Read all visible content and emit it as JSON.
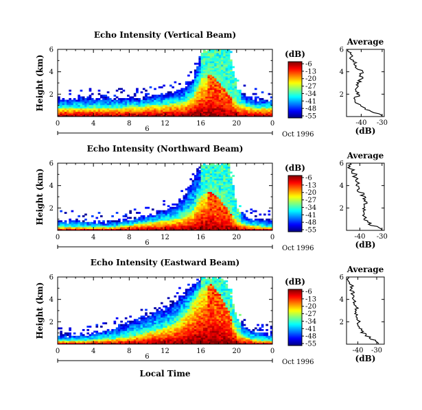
{
  "chart_data": [
    {
      "type": "heatmap",
      "title": "Echo Intensity (Vertical Beam)",
      "ylabel": "Height (km)",
      "date_label": "Oct 1996",
      "x_ticks": [
        "0",
        "4",
        "8",
        "12",
        "16",
        "20",
        "0"
      ],
      "day_label": "6",
      "y_ticks": [
        "2",
        "4",
        "6"
      ],
      "xlim": [
        0,
        24
      ],
      "ylim": [
        0,
        6
      ],
      "colorbar": {
        "unit": "(dB)",
        "ticks": [
          "-6",
          "-13",
          "-20",
          "-27",
          "-34",
          "-41",
          "-48",
          "-55"
        ]
      },
      "layer_top_km": [
        1.6,
        1.6,
        1.6,
        1.7,
        1.6,
        1.6,
        1.7,
        1.6,
        1.7,
        1.6,
        1.8,
        1.9,
        2.0,
        2.2,
        2.5,
        3.5,
        5.9,
        6.0,
        6.0,
        6.0,
        2.5,
        1.8,
        1.6,
        1.5
      ],
      "strong_layer_top_km": [
        0.8,
        0.8,
        0.8,
        0.8,
        0.8,
        0.8,
        0.8,
        0.8,
        0.9,
        0.9,
        1.0,
        1.0,
        1.1,
        1.2,
        1.3,
        1.8,
        3.4,
        3.8,
        3.0,
        2.0,
        1.2,
        0.9,
        0.8,
        0.8
      ],
      "average": {
        "title": "Average",
        "xlabel": "(dB)",
        "x_ticks": [
          "-40",
          "-30"
        ],
        "xlim": [
          -47,
          -29
        ],
        "y_ticks": [
          "2",
          "4",
          "6"
        ],
        "ylim": [
          0,
          6
        ],
        "profile": [
          {
            "h": 0.1,
            "db": -30
          },
          {
            "h": 0.3,
            "db": -32
          },
          {
            "h": 0.5,
            "db": -36
          },
          {
            "h": 0.8,
            "db": -39
          },
          {
            "h": 1.1,
            "db": -42
          },
          {
            "h": 1.5,
            "db": -43
          },
          {
            "h": 2.0,
            "db": -41
          },
          {
            "h": 2.5,
            "db": -43
          },
          {
            "h": 3.0,
            "db": -41
          },
          {
            "h": 3.5,
            "db": -40
          },
          {
            "h": 4.0,
            "db": -40
          },
          {
            "h": 4.5,
            "db": -42
          },
          {
            "h": 5.0,
            "db": -44
          },
          {
            "h": 5.5,
            "db": -45
          },
          {
            "h": 6.0,
            "db": -46
          }
        ]
      }
    },
    {
      "type": "heatmap",
      "title": "Echo Intensity (Northward Beam)",
      "ylabel": "Height (km)",
      "date_label": "Oct 1996",
      "x_ticks": [
        "0",
        "4",
        "8",
        "12",
        "16",
        "20",
        "0"
      ],
      "day_label": "6",
      "y_ticks": [
        "2",
        "4",
        "6"
      ],
      "xlim": [
        0,
        24
      ],
      "ylim": [
        0,
        6
      ],
      "colorbar": {
        "unit": "(dB)",
        "ticks": [
          "-6",
          "-13",
          "-20",
          "-27",
          "-34",
          "-41",
          "-48",
          "-55"
        ]
      },
      "layer_top_km": [
        0.9,
        0.8,
        0.9,
        0.8,
        0.8,
        0.7,
        0.8,
        0.9,
        1.0,
        1.2,
        1.3,
        1.6,
        1.8,
        2.3,
        3.0,
        4.5,
        5.9,
        6.0,
        6.0,
        6.0,
        2.0,
        1.2,
        1.0,
        0.9
      ],
      "strong_layer_top_km": [
        0.3,
        0.3,
        0.3,
        0.3,
        0.3,
        0.3,
        0.3,
        0.4,
        0.5,
        0.6,
        0.7,
        0.8,
        0.9,
        1.0,
        1.2,
        1.8,
        3.2,
        3.5,
        2.8,
        1.8,
        0.8,
        0.5,
        0.4,
        0.3
      ],
      "average": {
        "title": "Average",
        "xlabel": "(dB)",
        "x_ticks": [
          "-40",
          "-30"
        ],
        "xlim": [
          -46,
          -29
        ],
        "y_ticks": [
          "2",
          "4",
          "6"
        ],
        "ylim": [
          0,
          6
        ],
        "profile": [
          {
            "h": 0.1,
            "db": -30
          },
          {
            "h": 0.3,
            "db": -32
          },
          {
            "h": 0.5,
            "db": -35
          },
          {
            "h": 0.8,
            "db": -37
          },
          {
            "h": 1.2,
            "db": -38
          },
          {
            "h": 1.6,
            "db": -39
          },
          {
            "h": 2.0,
            "db": -38
          },
          {
            "h": 2.5,
            "db": -37
          },
          {
            "h": 3.0,
            "db": -38
          },
          {
            "h": 3.5,
            "db": -40
          },
          {
            "h": 4.0,
            "db": -41
          },
          {
            "h": 4.5,
            "db": -42
          },
          {
            "h": 5.0,
            "db": -42
          },
          {
            "h": 5.5,
            "db": -44
          },
          {
            "h": 6.0,
            "db": -45
          }
        ]
      }
    },
    {
      "type": "heatmap",
      "title": "Echo Intensity (Eastward Beam)",
      "ylabel": "Height (km)",
      "date_label": "Oct 1996",
      "x_ticks": [
        "0",
        "4",
        "8",
        "12",
        "16",
        "20",
        "0"
      ],
      "day_label": "6",
      "y_ticks": [
        "2",
        "4",
        "6"
      ],
      "xlim": [
        0,
        24
      ],
      "ylim": [
        0,
        6
      ],
      "colorbar": {
        "unit": "(dB)",
        "ticks": [
          "-6",
          "-13",
          "-20",
          "-27",
          "-34",
          "-41",
          "-48",
          "-55"
        ]
      },
      "layer_top_km": [
        0.8,
        0.8,
        0.8,
        0.9,
        1.0,
        1.2,
        1.4,
        1.6,
        2.0,
        2.3,
        2.6,
        3.0,
        3.3,
        3.8,
        4.5,
        5.3,
        6.0,
        6.0,
        6.0,
        5.0,
        2.0,
        1.5,
        1.2,
        1.0
      ],
      "strong_layer_top_km": [
        0.3,
        0.3,
        0.3,
        0.3,
        0.4,
        0.4,
        0.5,
        0.6,
        0.7,
        0.9,
        1.1,
        1.3,
        1.5,
        1.9,
        2.6,
        3.8,
        5.0,
        5.4,
        4.5,
        3.0,
        1.0,
        0.6,
        0.4,
        0.3
      ],
      "average": {
        "title": "Average",
        "xlabel": "(dB)",
        "x_ticks": [
          "-40",
          "-30"
        ],
        "xlim": [
          -46,
          -26
        ],
        "y_ticks": [
          "2",
          "4",
          "6"
        ],
        "ylim": [
          0,
          6
        ],
        "profile": [
          {
            "h": 0.1,
            "db": -29
          },
          {
            "h": 0.3,
            "db": -31
          },
          {
            "h": 0.6,
            "db": -34
          },
          {
            "h": 1.0,
            "db": -37
          },
          {
            "h": 1.5,
            "db": -39
          },
          {
            "h": 2.0,
            "db": -40
          },
          {
            "h": 2.5,
            "db": -40
          },
          {
            "h": 3.0,
            "db": -41
          },
          {
            "h": 3.5,
            "db": -41
          },
          {
            "h": 4.0,
            "db": -42
          },
          {
            "h": 4.5,
            "db": -43
          },
          {
            "h": 5.0,
            "db": -43
          },
          {
            "h": 5.5,
            "db": -44
          },
          {
            "h": 6.0,
            "db": -45
          }
        ]
      }
    }
  ],
  "common": {
    "xlabel": "Local Time"
  }
}
